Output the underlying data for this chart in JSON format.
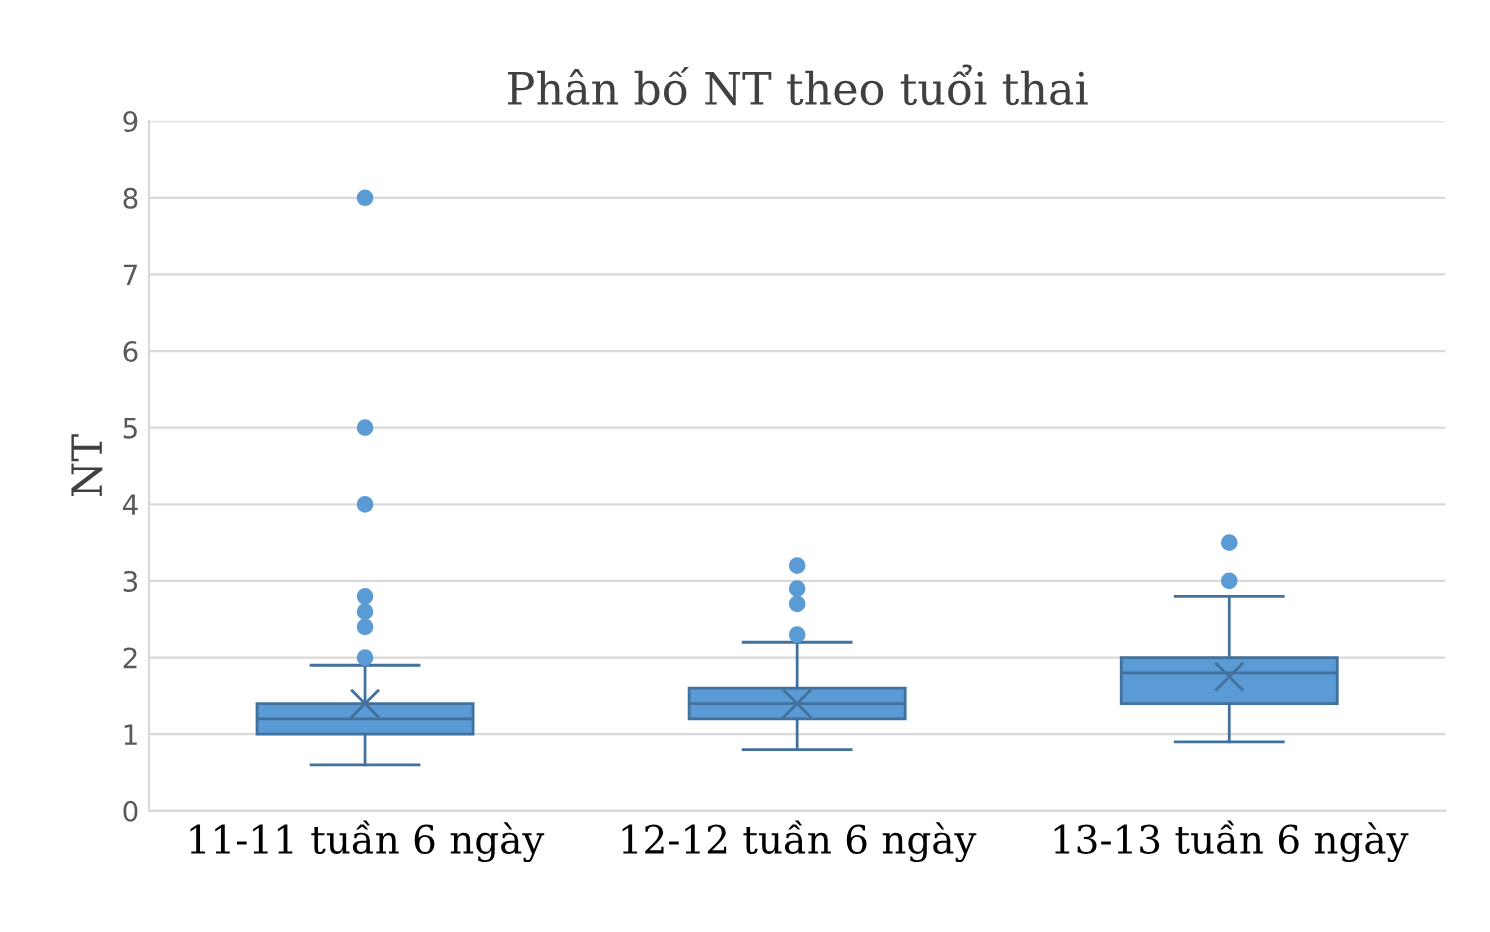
{
  "chart_data": {
    "type": "box",
    "title": "Phân bố NT theo tuổi thai",
    "ylabel": "NT",
    "categories": [
      "11-11 tuần 6 ngày",
      "12-12 tuần 6 ngày",
      "13-13 tuần 6 ngày"
    ],
    "color": "#5b9bd5",
    "boxes": [
      {
        "low": 0.6,
        "q1": 1.0,
        "median": 1.2,
        "q3": 1.4,
        "high": 1.9,
        "mean": 1.4,
        "outliers": [
          2.0,
          2.4,
          2.6,
          2.8,
          4,
          5,
          8
        ]
      },
      {
        "low": 0.8,
        "q1": 1.2,
        "median": 1.4,
        "q3": 1.6,
        "high": 2.2,
        "mean": 1.4,
        "outliers": [
          2.3,
          2.7,
          2.9,
          3.2
        ]
      },
      {
        "low": 0.9,
        "q1": 1.4,
        "median": 1.8,
        "q3": 2.0,
        "high": 2.8,
        "mean": 1.75,
        "outliers": [
          3.0,
          3.5
        ]
      }
    ],
    "ylim": [
      0,
      9
    ],
    "yticks": [
      0,
      1,
      2,
      3,
      4,
      5,
      6,
      7,
      8,
      9
    ],
    "grid": "y",
    "legend": false
  }
}
